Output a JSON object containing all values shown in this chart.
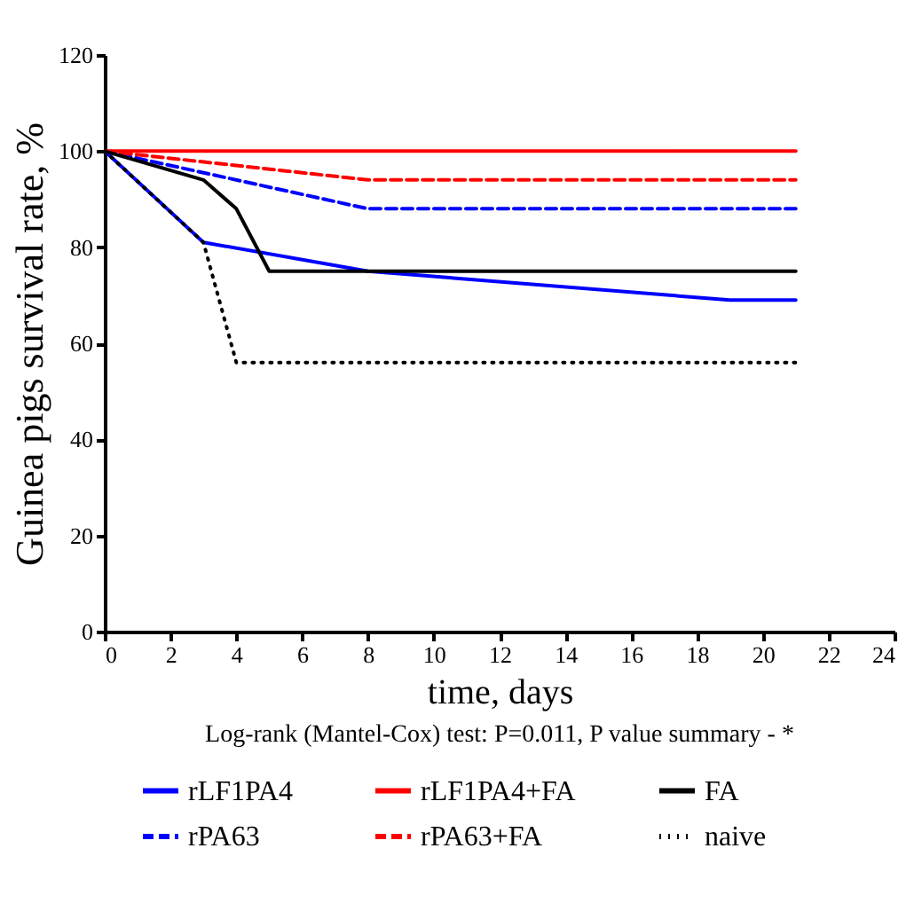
{
  "chart_data": {
    "type": "line",
    "xlabel": "time, days",
    "ylabel": "Guinea pigs survival rate, %",
    "annotations": [
      "Log-rank (Mantel-Cox) test: P=0.011, P value summary - *"
    ],
    "xlim": [
      0,
      24
    ],
    "xticks": [
      0,
      2,
      4,
      6,
      8,
      10,
      12,
      14,
      16,
      18,
      20,
      22,
      24
    ],
    "ylim": [
      0,
      120
    ],
    "yticks": [
      0,
      20,
      40,
      60,
      80,
      100,
      120
    ],
    "legend": "bottom",
    "grid": false,
    "series": [
      {
        "name": "rLF1PA4",
        "color": "#0000ff",
        "line_style": "solid",
        "x": [
          0,
          3,
          8,
          19,
          21
        ],
        "values": [
          100,
          81,
          75,
          69,
          69
        ]
      },
      {
        "name": "rPA63",
        "color": "#0000ff",
        "line_style": "dashed",
        "x": [
          0,
          8,
          21
        ],
        "values": [
          100,
          88,
          88
        ]
      },
      {
        "name": "rLF1PA4+FA",
        "color": "#ff0000",
        "line_style": "solid",
        "x": [
          0,
          21
        ],
        "values": [
          100,
          100
        ]
      },
      {
        "name": "rPA63+FA",
        "color": "#ff0000",
        "line_style": "dashed",
        "x": [
          0,
          8,
          21
        ],
        "values": [
          100,
          94,
          94
        ]
      },
      {
        "name": "FA",
        "color": "#000000",
        "line_style": "solid",
        "x": [
          0,
          3,
          4,
          5,
          21
        ],
        "values": [
          100,
          94,
          88,
          75,
          75
        ]
      },
      {
        "name": "naive",
        "color": "#000000",
        "line_style": "dotted",
        "x": [
          0,
          3,
          4,
          21
        ],
        "values": [
          100,
          81,
          56,
          56
        ]
      }
    ]
  }
}
